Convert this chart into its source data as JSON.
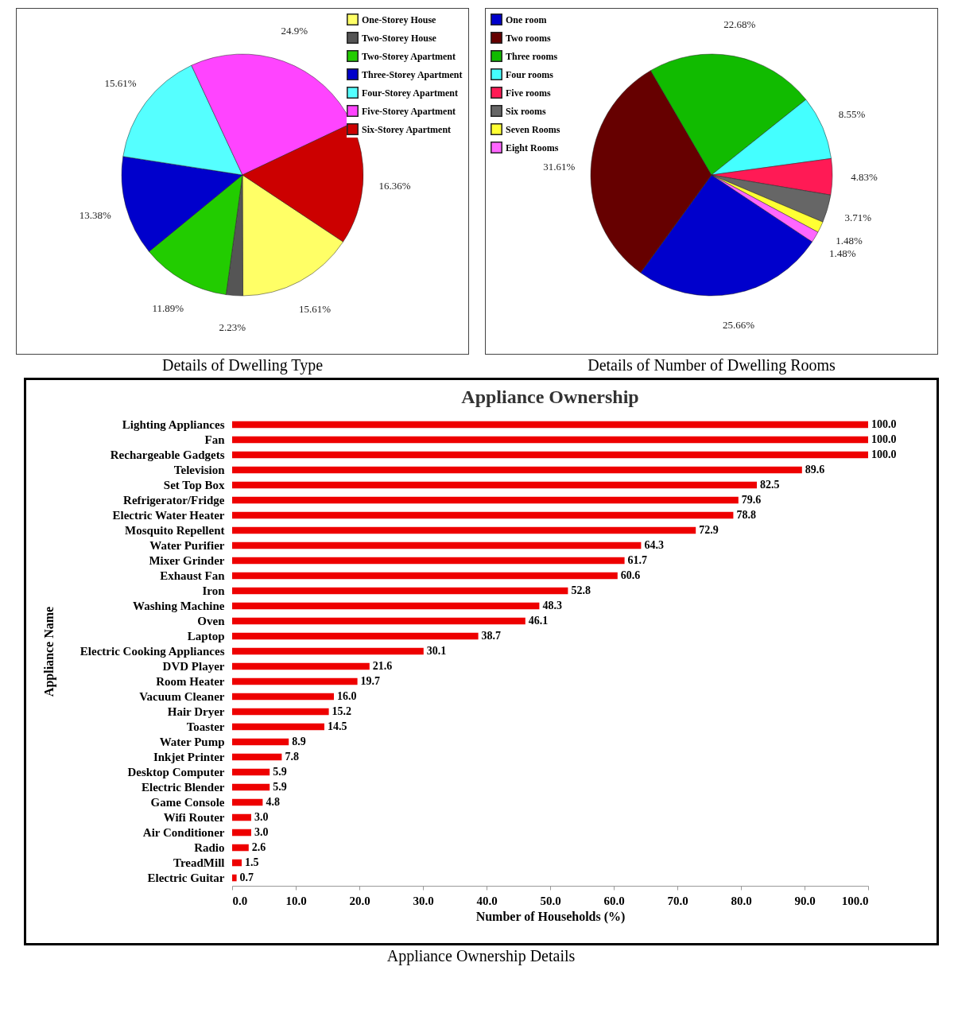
{
  "chart_data": [
    {
      "type": "pie",
      "categories": [
        "One-Storey House",
        "Two-Storey House",
        "Two-Storey Apartment",
        "Three-Storey Apartment",
        "Four-Storey Apartment",
        "Five-Storey Apartment",
        "Six-Storey Apartment"
      ],
      "values": [
        15.61,
        2.23,
        11.89,
        13.38,
        15.61,
        24.9,
        16.36
      ],
      "colors": [
        "#ffff66",
        "#555555",
        "#22cc00",
        "#0000cc",
        "#55ffff",
        "#ff44ff",
        "#cc0000"
      ],
      "value_labels": [
        "15.61%",
        "2.23%",
        "11.89%",
        "13.38%",
        "15.61%",
        "24.9%",
        "16.36%"
      ],
      "legend": "top right",
      "annotations": [
        "Details of Dwelling Type"
      ]
    },
    {
      "type": "pie",
      "categories": [
        "One room",
        "Two rooms",
        "Three rooms",
        "Four rooms",
        "Five rooms",
        "Six rooms",
        "Seven Rooms",
        "Eight Rooms"
      ],
      "values": [
        25.66,
        31.61,
        22.68,
        8.55,
        4.83,
        3.71,
        1.48,
        1.48
      ],
      "colors": [
        "#0000cc",
        "#660000",
        "#11bb00",
        "#44ffff",
        "#ff1a55",
        "#666666",
        "#ffff33",
        "#ff66ff"
      ],
      "value_labels": [
        "25.66%",
        "31.61%",
        "22.68%",
        "8.55%",
        "4.83%",
        "3.71%",
        "1.48%",
        "1.48%"
      ],
      "legend": "top left",
      "annotations": [
        "Details of Number of Dwelling Rooms"
      ]
    },
    {
      "type": "bar",
      "orientation": "horizontal",
      "title": "Appliance Ownership",
      "xlabel": "Number  of Households (%)",
      "ylabel": "Appliance  Name",
      "color": "#ee0000",
      "categories": [
        "Lighting Appliances",
        "Fan",
        "Rechargeable Gadgets",
        "Television",
        "Set Top Box",
        "Refrigerator/Fridge",
        "Electric Water Heater",
        "Mosquito Repellent",
        "Water Purifier",
        "Mixer Grinder",
        "Exhaust Fan",
        "Iron",
        "Washing Machine",
        "Oven",
        "Laptop",
        "Electric Cooking Appliances",
        "DVD Player",
        "Room Heater",
        "Vacuum Cleaner",
        "Hair Dryer",
        "Toaster",
        "Water Pump",
        "Inkjet Printer",
        "Desktop Computer",
        "Electric Blender",
        "Game Console",
        "Wifi Router",
        "Air Conditioner",
        "Radio",
        "TreadMill",
        "Electric Guitar"
      ],
      "values": [
        100,
        100,
        100,
        89.6,
        82.5,
        79.6,
        78.8,
        72.9,
        64.3,
        61.7,
        60.6,
        52.8,
        48.3,
        46.1,
        38.7,
        30.1,
        21.6,
        19.7,
        16,
        15.2,
        14.5,
        8.9,
        7.8,
        5.9,
        5.9,
        4.8,
        3,
        3,
        2.6,
        1.5,
        0.7
      ],
      "value_labels": [
        "100.0",
        "100.0",
        "100.0",
        "89.6",
        "82.5",
        "79.6",
        "78.8",
        "72.9",
        "64.3",
        "61.7",
        "60.6",
        "52.8",
        "48.3",
        "46.1",
        "38.7",
        "30.1",
        "21.6",
        "19.7",
        "16.0",
        "15.2",
        "14.5",
        "8.9",
        "7.8",
        "5.9",
        "5.9",
        "4.8",
        "3.0",
        "3.0",
        "2.6",
        "1.5",
        "0.7"
      ],
      "xlim": [
        0,
        100
      ],
      "xticks": [
        {
          "value": 0,
          "label": "0.0"
        },
        {
          "value": 10,
          "label": "10.0"
        },
        {
          "value": 20,
          "label": "20.0"
        },
        {
          "value": 30,
          "label": "30.0"
        },
        {
          "value": 40,
          "label": "40.0"
        },
        {
          "value": 50,
          "label": "50.0"
        },
        {
          "value": 60,
          "label": "60.0"
        },
        {
          "value": 70,
          "label": "70.0"
        },
        {
          "value": 80,
          "label": "80.0"
        },
        {
          "value": 90,
          "label": "90.0"
        },
        {
          "value": 100,
          "label": "100.0"
        }
      ],
      "annotations": [
        "Appliance Ownership Details"
      ]
    }
  ]
}
